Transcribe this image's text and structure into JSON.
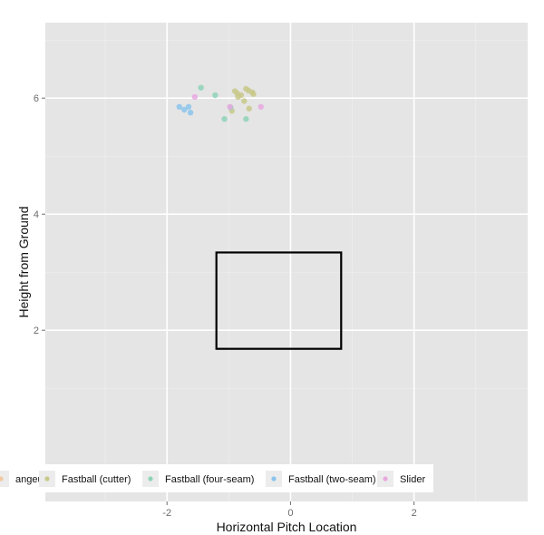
{
  "chart_data": {
    "type": "scatter",
    "title": "",
    "xlabel": "Horizontal Pitch Location",
    "ylabel": "Height from Ground",
    "xlim": [
      -3.97,
      3.84
    ],
    "ylim": [
      -0.95,
      7.3
    ],
    "xticks": [
      {
        "value": -2,
        "label": "-2"
      },
      {
        "value": 0,
        "label": "0"
      },
      {
        "value": 2,
        "label": "2"
      }
    ],
    "yticks": [
      {
        "value": 2,
        "label": "2"
      },
      {
        "value": 4,
        "label": "4"
      },
      {
        "value": 6,
        "label": "6"
      }
    ],
    "grid": true,
    "legend": {
      "position": "bottom",
      "entries": [
        {
          "label": "angeup",
          "color": "#f2c8a0"
        },
        {
          "label": "Fastball (cutter)",
          "color": "#c8c88a"
        },
        {
          "label": "Fastball (four-seam)",
          "color": "#8fd4b8"
        },
        {
          "label": "Fastball (two-seam)",
          "color": "#8cc4ec"
        },
        {
          "label": "Slider",
          "color": "#e8a8e0"
        }
      ]
    },
    "strike_zone": {
      "x": [
        -1.2,
        0.82
      ],
      "y": [
        1.68,
        3.34
      ]
    },
    "series": [
      {
        "color": "#c8c88a",
        "points": [
          {
            "x": -0.9,
            "y": 6.12
          },
          {
            "x": -0.86,
            "y": 6.08
          },
          {
            "x": -0.8,
            "y": 6.05
          },
          {
            "x": -0.72,
            "y": 6.16
          },
          {
            "x": -0.68,
            "y": 6.13
          },
          {
            "x": -0.62,
            "y": 6.1
          },
          {
            "x": -0.6,
            "y": 6.07
          },
          {
            "x": -0.75,
            "y": 5.95
          },
          {
            "x": -0.67,
            "y": 5.82
          },
          {
            "x": -0.95,
            "y": 5.78
          },
          {
            "x": -0.85,
            "y": 6.02
          }
        ]
      },
      {
        "color": "#8fd4b8",
        "points": [
          {
            "x": -1.45,
            "y": 6.18
          },
          {
            "x": -1.22,
            "y": 6.05
          },
          {
            "x": -1.07,
            "y": 5.64
          },
          {
            "x": -0.72,
            "y": 5.64
          },
          {
            "x": -0.97,
            "y": 5.84
          }
        ]
      },
      {
        "color": "#8cc4ec",
        "points": [
          {
            "x": -1.8,
            "y": 5.85
          },
          {
            "x": -1.72,
            "y": 5.8
          },
          {
            "x": -1.65,
            "y": 5.85
          },
          {
            "x": -1.62,
            "y": 5.75
          }
        ]
      },
      {
        "color": "#e8a8e0",
        "points": [
          {
            "x": -1.55,
            "y": 6.02
          },
          {
            "x": -0.98,
            "y": 5.85
          },
          {
            "x": -0.48,
            "y": 5.85
          }
        ]
      }
    ]
  }
}
